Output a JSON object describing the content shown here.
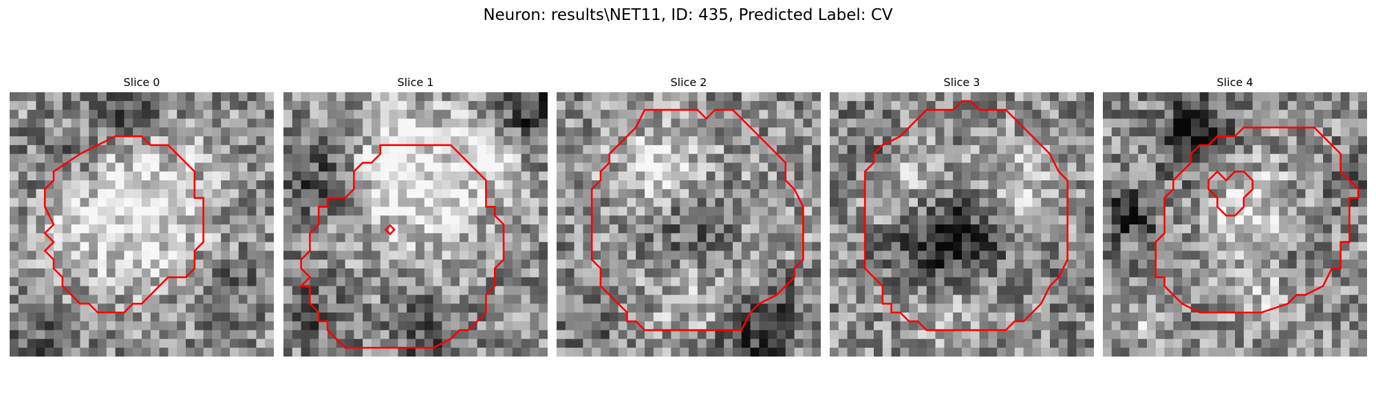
{
  "figure": {
    "title": "Neuron: results\\NET11, ID: 435, Predicted Label: CV"
  },
  "panels": [
    {
      "title": "Slice 0",
      "contour_color": "#ff0000"
    },
    {
      "title": "Slice 1",
      "contour_color": "#ff0000"
    },
    {
      "title": "Slice 2",
      "contour_color": "#ff0000"
    },
    {
      "title": "Slice 3",
      "contour_color": "#ff0000"
    },
    {
      "title": "Slice 4",
      "contour_color": "#ff0000"
    }
  ],
  "image_style": {
    "colormap": "grayscale",
    "grid_resolution": 30
  }
}
